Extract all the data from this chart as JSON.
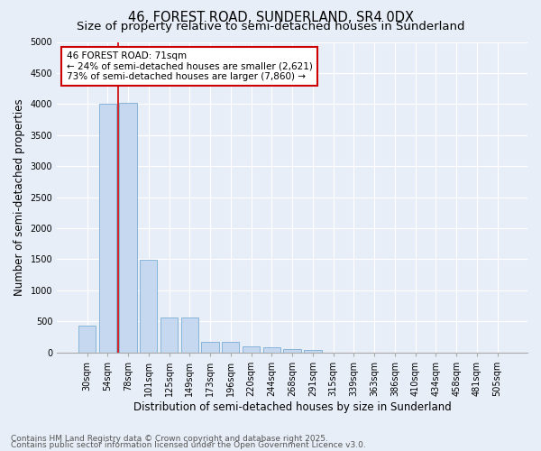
{
  "title1": "46, FOREST ROAD, SUNDERLAND, SR4 0DX",
  "title2": "Size of property relative to semi-detached houses in Sunderland",
  "xlabel": "Distribution of semi-detached houses by size in Sunderland",
  "ylabel": "Number of semi-detached properties",
  "categories": [
    "30sqm",
    "54sqm",
    "78sqm",
    "101sqm",
    "125sqm",
    "149sqm",
    "173sqm",
    "196sqm",
    "220sqm",
    "244sqm",
    "268sqm",
    "291sqm",
    "315sqm",
    "339sqm",
    "363sqm",
    "386sqm",
    "410sqm",
    "434sqm",
    "458sqm",
    "481sqm",
    "505sqm"
  ],
  "values": [
    430,
    4010,
    4020,
    1490,
    560,
    555,
    175,
    175,
    100,
    75,
    55,
    30,
    0,
    0,
    0,
    0,
    0,
    0,
    0,
    0,
    0
  ],
  "bar_color": "#c5d8ef",
  "bar_edge_color": "#7aadd4",
  "annotation_box_text": "46 FOREST ROAD: 71sqm\n← 24% of semi-detached houses are smaller (2,621)\n73% of semi-detached houses are larger (7,860) →",
  "annotation_box_color": "#ffffff",
  "annotation_box_edge_color": "#cc0000",
  "annotation_line_color": "#cc0000",
  "red_line_x": 1.5,
  "ylim": [
    0,
    5000
  ],
  "yticks": [
    0,
    500,
    1000,
    1500,
    2000,
    2500,
    3000,
    3500,
    4000,
    4500,
    5000
  ],
  "footer1": "Contains HM Land Registry data © Crown copyright and database right 2025.",
  "footer2": "Contains public sector information licensed under the Open Government Licence v3.0.",
  "bg_color": "#e8eef7",
  "plot_bg_color": "#e8eef7",
  "grid_color": "#ffffff",
  "title_fontsize": 10.5,
  "subtitle_fontsize": 9.5,
  "axis_label_fontsize": 8.5,
  "tick_fontsize": 7,
  "annotation_fontsize": 7.5,
  "footer_fontsize": 6.5
}
